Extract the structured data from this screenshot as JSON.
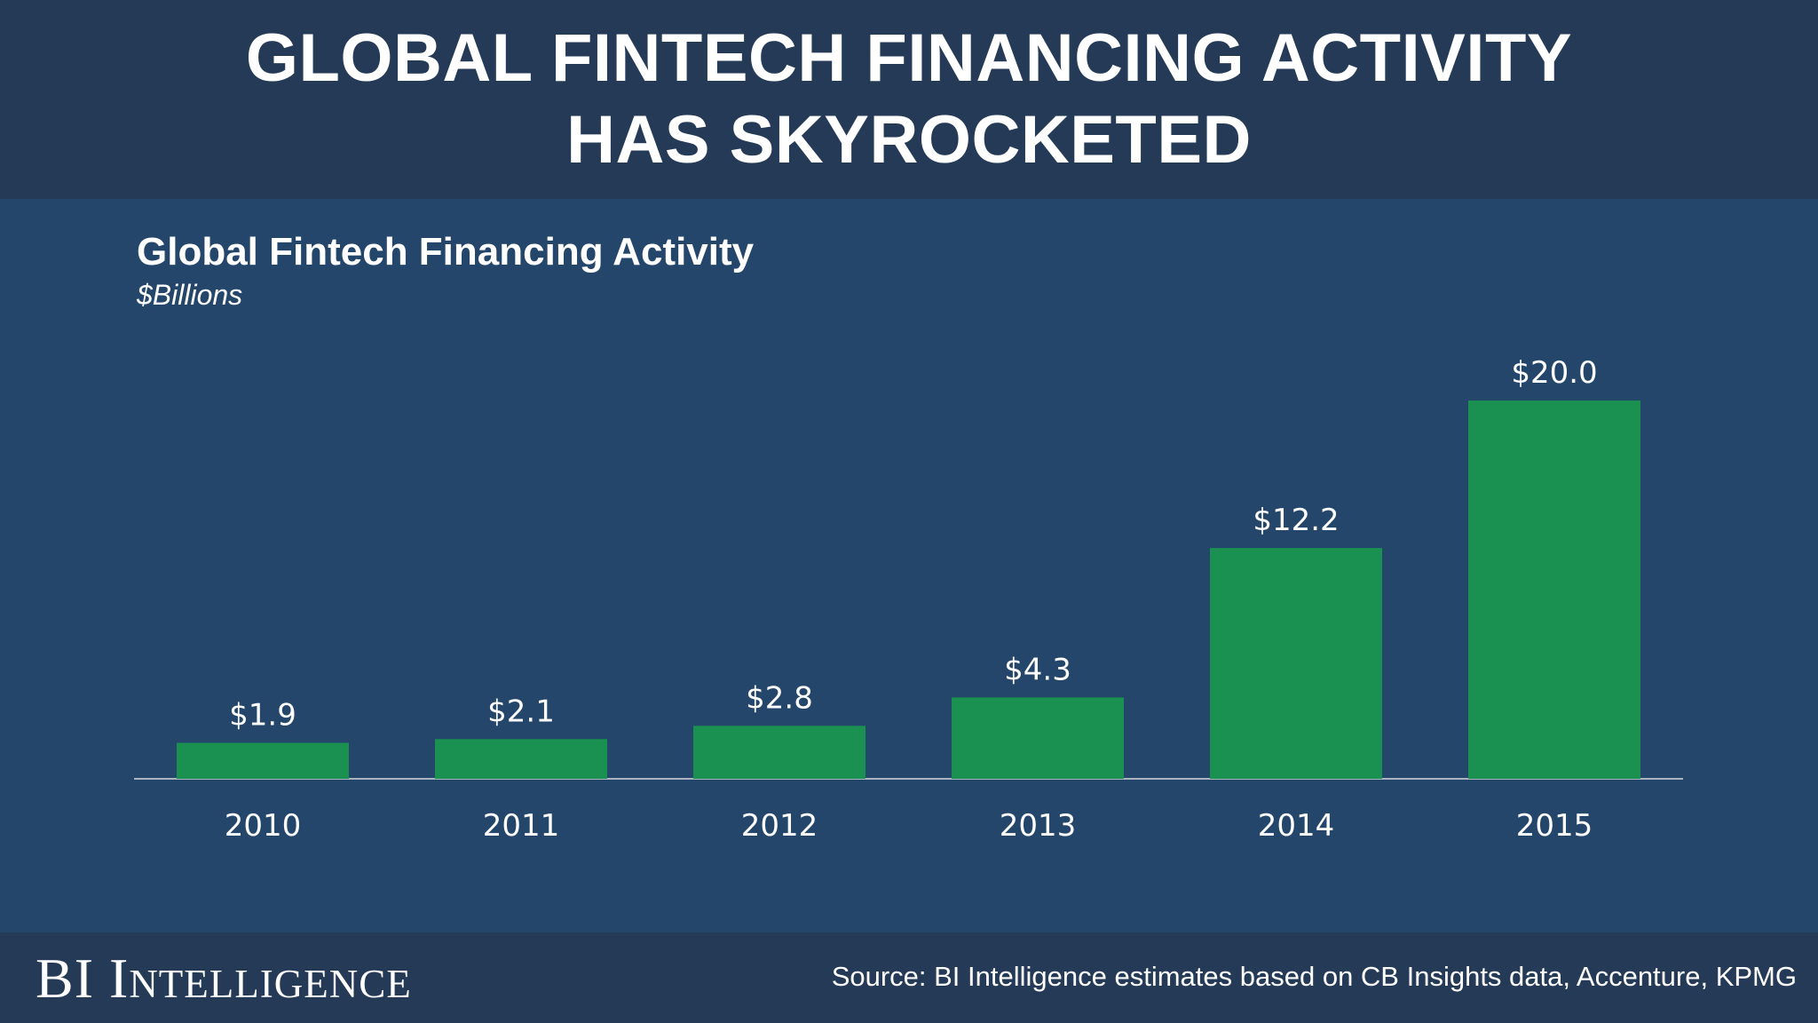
{
  "header": {
    "title_line1": "GLOBAL FINTECH FINANCING ACTIVITY",
    "title_line2": "HAS SKYROCKETED"
  },
  "footer": {
    "brand": "BI Intelligence",
    "source": "Source: BI Intelligence estimates based on CB Insights data, Accenture, KPMG"
  },
  "colors": {
    "background": "#24466b",
    "band": "#243a56",
    "bar": "#1a9150",
    "axis": "#a9b4c0",
    "text": "#ffffff"
  },
  "chart_data": {
    "type": "bar",
    "title": "Global Fintech Financing Activity",
    "subtitle": "$Billions",
    "categories": [
      "2010",
      "2011",
      "2012",
      "2013",
      "2014",
      "2015"
    ],
    "values": [
      1.9,
      2.1,
      2.8,
      4.3,
      12.2,
      20.0
    ],
    "data_labels": [
      "$1.9",
      "$2.1",
      "$2.8",
      "$4.3",
      "$12.2",
      "$20.0"
    ],
    "xlabel": "",
    "ylabel": "",
    "ylim": [
      0,
      20.0
    ],
    "grid": false,
    "legend": "none"
  }
}
